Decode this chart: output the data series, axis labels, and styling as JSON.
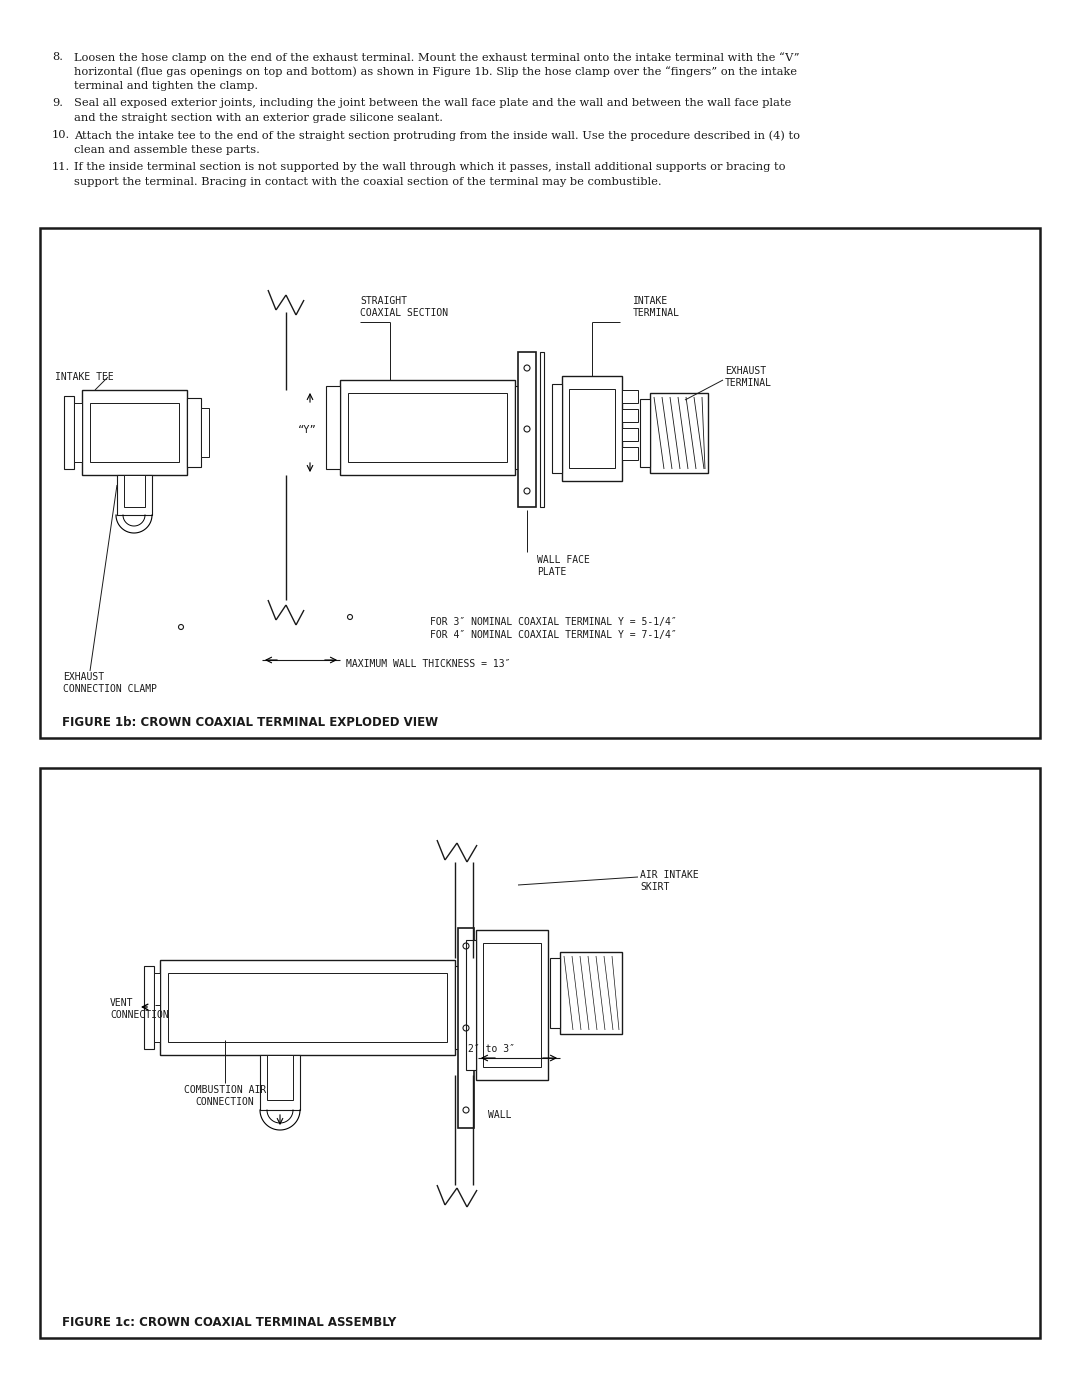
{
  "bg_color": "#ffffff",
  "line_color": "#1a1a1a",
  "text_color": "#1a1a1a",
  "fig_width": 10.8,
  "fig_height": 13.97,
  "fig1b_title": "FIGURE 1b: CROWN COAXIAL TERMINAL EXPLODED VIEW",
  "fig1c_title": "FIGURE 1c: CROWN COAXIAL TERMINAL ASSEMBLY"
}
